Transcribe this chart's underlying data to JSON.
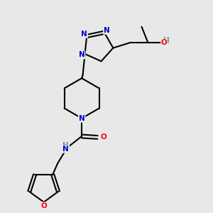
{
  "bg_color": "#e8e8e8",
  "atom_colors": {
    "N": "#0000cc",
    "O": "#ff0000",
    "H": "#4a9a9a"
  },
  "bond_color": "#000000",
  "bond_width": 1.5
}
